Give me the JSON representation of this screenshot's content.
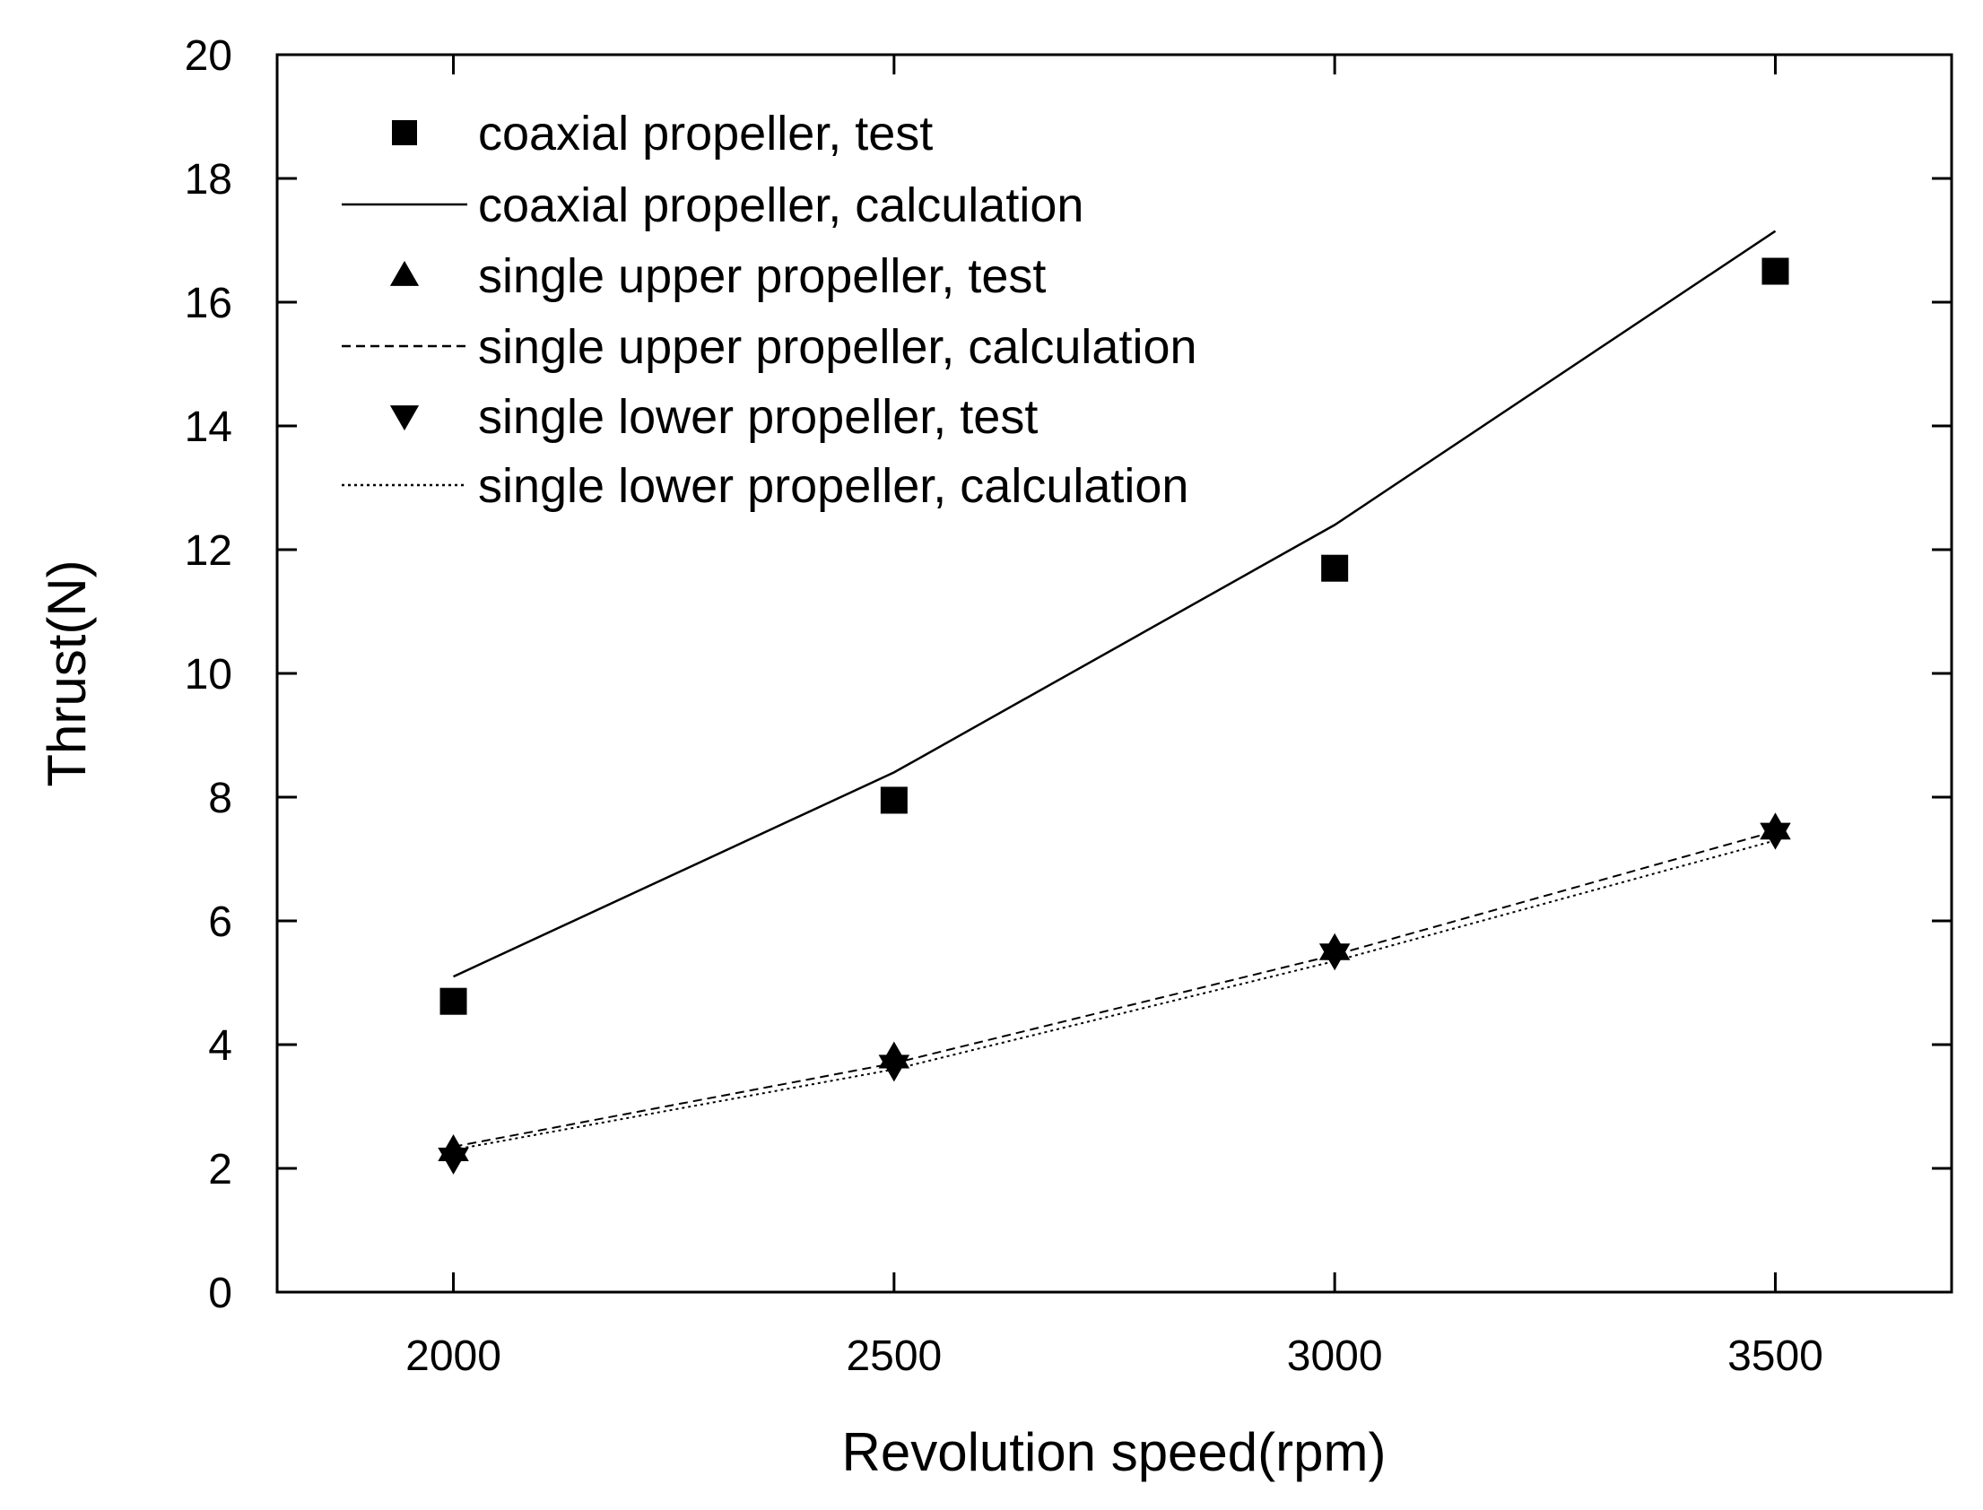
{
  "chart_data": {
    "type": "line",
    "title": "",
    "xlabel": "Revolution speed(rpm)",
    "ylabel": "Thrust(N)",
    "xlim": [
      1800,
      3700
    ],
    "ylim": [
      0,
      20
    ],
    "xticks": [
      2000,
      2500,
      3000,
      3500
    ],
    "yticks": [
      0,
      2,
      4,
      6,
      8,
      10,
      12,
      14,
      16,
      18,
      20
    ],
    "grid": false,
    "legend_position": "top-left",
    "series": [
      {
        "name": "coaxial propeller, test",
        "kind": "marker",
        "marker": "square",
        "x": [
          2000,
          2500,
          3000,
          3500
        ],
        "y": [
          4.7,
          7.95,
          11.7,
          16.5
        ]
      },
      {
        "name": "coaxial propeller, calculation",
        "kind": "line",
        "dash": "solid",
        "x": [
          2000,
          2500,
          3000,
          3500
        ],
        "y": [
          5.1,
          8.4,
          12.4,
          17.15
        ]
      },
      {
        "name": "single upper propeller, test",
        "kind": "marker",
        "marker": "triangle-up",
        "x": [
          2000,
          2500,
          3000,
          3500
        ],
        "y": [
          2.3,
          3.8,
          5.55,
          7.5
        ]
      },
      {
        "name": "single upper propeller, calculation",
        "kind": "line",
        "dash": "dashed",
        "x": [
          2000,
          2500,
          3000,
          3500
        ],
        "y": [
          2.35,
          3.7,
          5.45,
          7.45
        ]
      },
      {
        "name": "single lower propeller, test",
        "kind": "marker",
        "marker": "triangle-down",
        "x": [
          2000,
          2500,
          3000,
          3500
        ],
        "y": [
          2.15,
          3.65,
          5.45,
          7.4
        ]
      },
      {
        "name": "single lower propeller, calculation",
        "kind": "line",
        "dash": "dotted",
        "x": [
          2000,
          2500,
          3000,
          3500
        ],
        "y": [
          2.3,
          3.6,
          5.35,
          7.3
        ]
      }
    ]
  }
}
